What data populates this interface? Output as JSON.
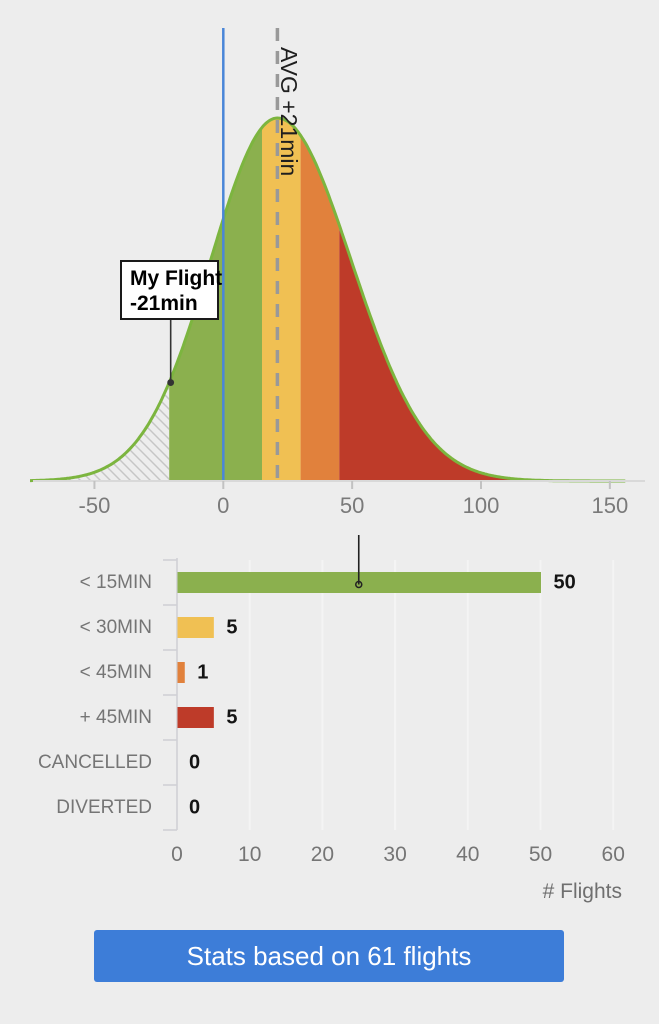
{
  "page": {
    "background": "#EDEDED"
  },
  "footer": {
    "button_label": "Stats based on 61 flights"
  },
  "chart_data": [
    {
      "type": "area",
      "name": "delay-distribution",
      "x_ticks": [
        -50,
        0,
        50,
        100,
        150
      ],
      "x_range": [
        -75,
        156
      ],
      "distribution": {
        "mean": 21,
        "sigma_left": 26,
        "sigma_right": 28.7,
        "peak_norm": 1
      },
      "curve_color": "#7CB53F",
      "axis_color": "#D9D9D9",
      "tick_color": "#C2C2C2",
      "tick_text_color": "#7A7A7A",
      "hatch_line_color": "#C6C6C6",
      "regions": [
        {
          "name": "before-my-flight",
          "from": -75,
          "to": -21,
          "fill": "hatch"
        },
        {
          "name": "lt-15min",
          "from": -21,
          "to": 15,
          "fill": "#8BB04E"
        },
        {
          "name": "lt-30min",
          "from": 15,
          "to": 30,
          "fill": "#F0C053"
        },
        {
          "name": "lt-45min",
          "from": 30,
          "to": 45,
          "fill": "#E1813C"
        },
        {
          "name": "gt-45min",
          "from": 45,
          "to": 156,
          "fill": "#BE3B29"
        }
      ],
      "annotations": [
        {
          "kind": "vline",
          "x": 0,
          "style": "solid",
          "color": "#4A86D8"
        },
        {
          "kind": "vline",
          "x": 21,
          "style": "dashed",
          "color": "#999999",
          "label": "AVG +21min",
          "label_color": "#1F1F1F"
        },
        {
          "kind": "callout",
          "x": -21,
          "lines": [
            "My Flight",
            "-21min"
          ],
          "box_fill": "#FFFFFF",
          "box_stroke": "#1A1A1A",
          "text_color": "#000000",
          "leader_color": "#333333"
        }
      ]
    },
    {
      "type": "bar",
      "orientation": "horizontal",
      "name": "delay-buckets",
      "categories": [
        "< 15MIN",
        "< 30MIN",
        "< 45MIN",
        "+ 45MIN",
        "CANCELLED",
        "DIVERTED"
      ],
      "values": [
        50,
        5,
        1,
        5,
        0,
        0
      ],
      "bar_colors": [
        "#8BB04E",
        "#F0C053",
        "#E1813C",
        "#BE3B29",
        null,
        null
      ],
      "x_ticks": [
        0,
        10,
        20,
        30,
        40,
        50,
        60
      ],
      "xlim": [
        0,
        63
      ],
      "xlabel": "# Flights",
      "grid": true,
      "marker_x": 25,
      "marker_color": "#222222",
      "axis_color": "#CFCFD4",
      "grid_color": "#F4F4F4",
      "category_text_color": "#757575",
      "value_text_color": "#141414",
      "tick_text_color": "#757575",
      "xlabel_color": "#6F6F6F"
    }
  ]
}
